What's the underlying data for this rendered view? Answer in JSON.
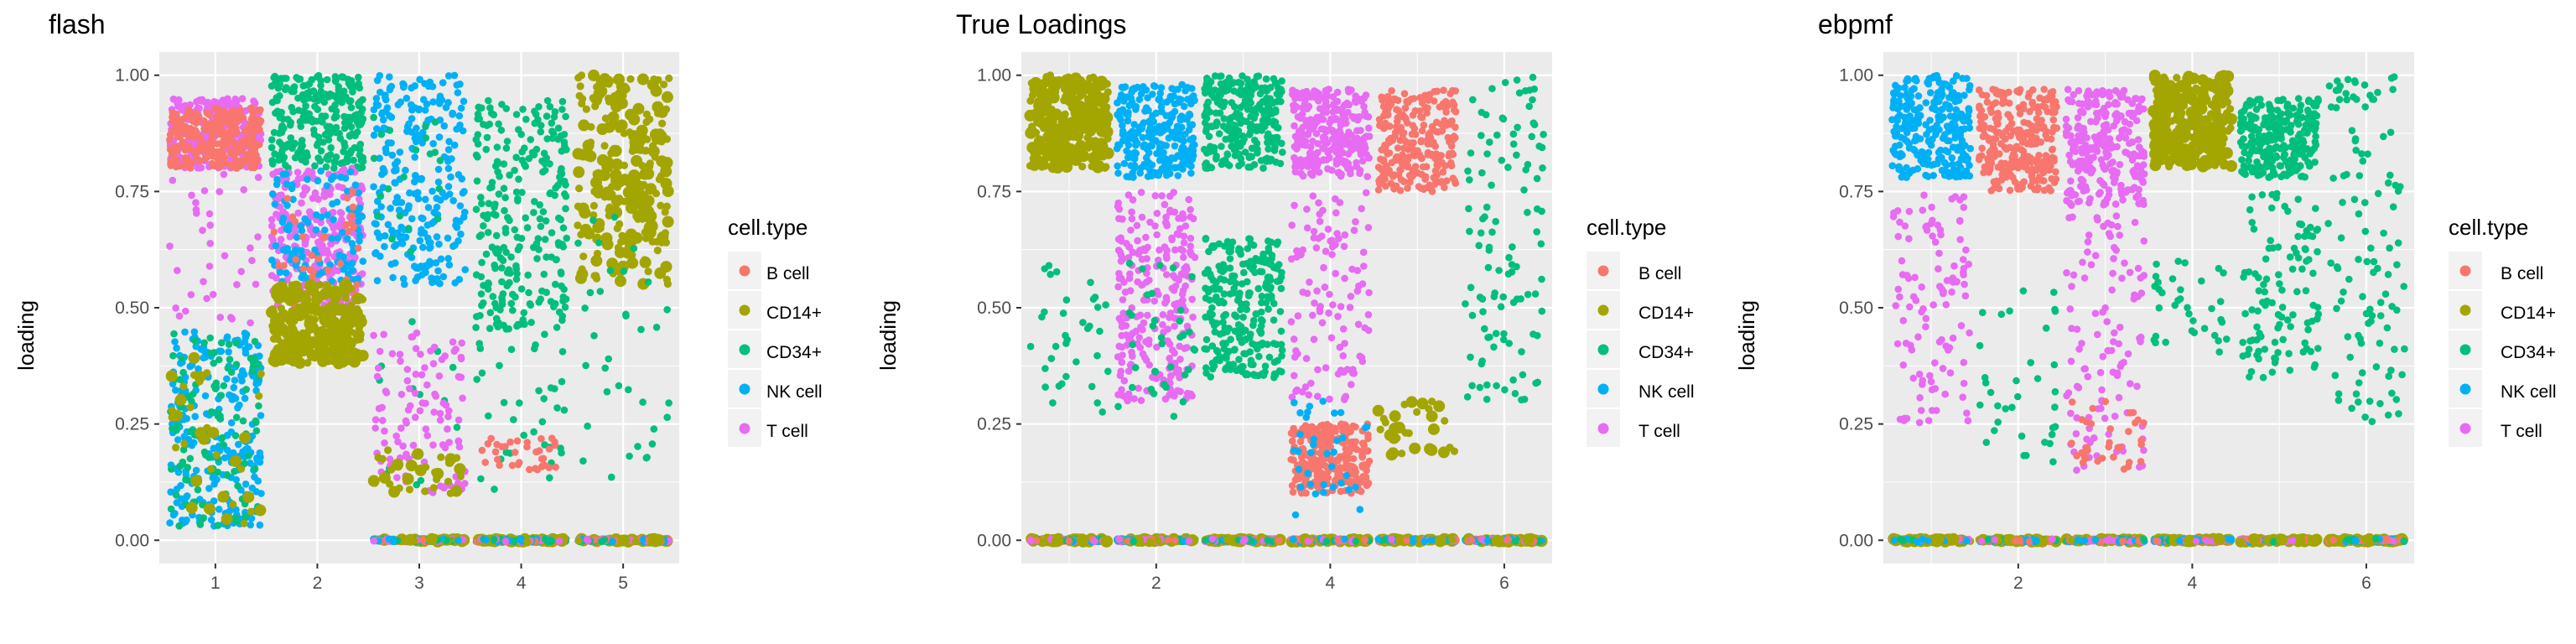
{
  "colors": {
    "B cell": "#F8766D",
    "CD14+": "#A3A500",
    "CD34+": "#00BF7D",
    "NK cell": "#00B0F6",
    "T cell": "#E76BF3",
    "panel_bg": "#EBEBEB",
    "grid": "#FFFFFF"
  },
  "legend": {
    "title": "cell.type",
    "items": [
      "B cell",
      "CD14+",
      "CD34+",
      "NK cell",
      "T cell"
    ]
  },
  "chart_data": [
    {
      "type": "scatter",
      "title": "flash",
      "xlabel": "",
      "ylabel": "loading",
      "x_ticks": [
        "1",
        "2",
        "3",
        "4",
        "5"
      ],
      "y_ticks": [
        "0.00",
        "0.25",
        "0.50",
        "0.75",
        "1.00"
      ],
      "xlim": [
        0.45,
        5.55
      ],
      "ylim": [
        -0.05,
        1.05
      ],
      "grid": true,
      "legend_position": "right",
      "jittered_factors": [
        {
          "factor": 1,
          "clusters": [
            {
              "type": "T cell",
              "ymin": 0.8,
              "ymax": 0.95,
              "density": "dense"
            },
            {
              "type": "B cell",
              "ymin": 0.8,
              "ymax": 0.93,
              "density": "dense"
            },
            {
              "type": "T cell",
              "ymin": 0.45,
              "ymax": 0.8,
              "density": "sparse"
            },
            {
              "type": "NK cell",
              "ymin": 0.03,
              "ymax": 0.45,
              "density": "dense"
            },
            {
              "type": "CD34+",
              "ymin": 0.03,
              "ymax": 0.45,
              "density": "medium"
            },
            {
              "type": "CD14+",
              "ymin": 0.03,
              "ymax": 0.4,
              "density": "sparse"
            }
          ]
        },
        {
          "factor": 2,
          "clusters": [
            {
              "type": "CD34+",
              "ymin": 0.8,
              "ymax": 1.0,
              "density": "dense"
            },
            {
              "type": "T cell",
              "ymin": 0.5,
              "ymax": 0.8,
              "density": "dense"
            },
            {
              "type": "NK cell",
              "ymin": 0.55,
              "ymax": 0.8,
              "density": "medium"
            },
            {
              "type": "B cell",
              "ymin": 0.5,
              "ymax": 0.75,
              "density": "sparse"
            },
            {
              "type": "CD14+",
              "ymin": 0.38,
              "ymax": 0.55,
              "density": "dense"
            }
          ]
        },
        {
          "factor": 3,
          "clusters": [
            {
              "type": "NK cell",
              "ymin": 0.55,
              "ymax": 1.0,
              "density": "dense"
            },
            {
              "type": "CD34+",
              "ymin": 0.1,
              "ymax": 0.95,
              "density": "sparse"
            },
            {
              "type": "T cell",
              "ymin": 0.1,
              "ymax": 0.45,
              "density": "medium"
            },
            {
              "type": "CD14+",
              "ymin": 0.1,
              "ymax": 0.2,
              "density": "sparse"
            },
            {
              "type": "mixed",
              "ymin": 0.0,
              "ymax": 0.0,
              "density": "dense"
            }
          ]
        },
        {
          "factor": 4,
          "clusters": [
            {
              "type": "CD34+",
              "ymin": 0.45,
              "ymax": 0.95,
              "density": "dense"
            },
            {
              "type": "CD34+",
              "ymin": 0.1,
              "ymax": 0.45,
              "density": "sparse"
            },
            {
              "type": "B cell",
              "ymin": 0.15,
              "ymax": 0.22,
              "density": "sparse"
            },
            {
              "type": "mixed",
              "ymin": 0.0,
              "ymax": 0.0,
              "density": "dense"
            }
          ]
        },
        {
          "factor": 5,
          "clusters": [
            {
              "type": "CD14+",
              "ymin": 0.55,
              "ymax": 1.0,
              "density": "dense"
            },
            {
              "type": "CD34+",
              "ymin": 0.1,
              "ymax": 0.7,
              "density": "sparse"
            },
            {
              "type": "mixed",
              "ymin": 0.0,
              "ymax": 0.0,
              "density": "dense"
            }
          ]
        }
      ]
    },
    {
      "type": "scatter",
      "title": "True Loadings",
      "xlabel": "",
      "ylabel": "loading",
      "x_ticks": [
        "2",
        "4",
        "6"
      ],
      "y_ticks": [
        "0.00",
        "0.25",
        "0.50",
        "0.75",
        "1.00"
      ],
      "xlim": [
        0.45,
        6.55
      ],
      "ylim": [
        -0.05,
        1.05
      ],
      "grid": true,
      "legend_position": "right",
      "jittered_factors": [
        {
          "factor": 1,
          "clusters": [
            {
              "type": "CD14+",
              "ymin": 0.8,
              "ymax": 1.0,
              "density": "dense"
            },
            {
              "type": "CD34+",
              "ymin": 0.25,
              "ymax": 0.6,
              "density": "sparse"
            },
            {
              "type": "mixed",
              "ymin": 0.0,
              "ymax": 0.0,
              "density": "dense"
            }
          ]
        },
        {
          "factor": 2,
          "clusters": [
            {
              "type": "NK cell",
              "ymin": 0.78,
              "ymax": 0.98,
              "density": "dense"
            },
            {
              "type": "T cell",
              "ymin": 0.3,
              "ymax": 0.75,
              "density": "dense"
            },
            {
              "type": "CD34+",
              "ymin": 0.25,
              "ymax": 0.6,
              "density": "sparse"
            },
            {
              "type": "mixed",
              "ymin": 0.0,
              "ymax": 0.0,
              "density": "dense"
            }
          ]
        },
        {
          "factor": 3,
          "clusters": [
            {
              "type": "CD34+",
              "ymin": 0.8,
              "ymax": 1.0,
              "density": "dense"
            },
            {
              "type": "CD34+",
              "ymin": 0.35,
              "ymax": 0.65,
              "density": "dense"
            },
            {
              "type": "mixed",
              "ymin": 0.0,
              "ymax": 0.0,
              "density": "dense"
            }
          ]
        },
        {
          "factor": 4,
          "clusters": [
            {
              "type": "T cell",
              "ymin": 0.78,
              "ymax": 0.97,
              "density": "dense"
            },
            {
              "type": "T cell",
              "ymin": 0.3,
              "ymax": 0.75,
              "density": "medium"
            },
            {
              "type": "B cell",
              "ymin": 0.1,
              "ymax": 0.25,
              "density": "dense"
            },
            {
              "type": "NK cell",
              "ymin": 0.05,
              "ymax": 0.3,
              "density": "sparse"
            },
            {
              "type": "mixed",
              "ymin": 0.0,
              "ymax": 0.0,
              "density": "dense"
            }
          ]
        },
        {
          "factor": 5,
          "clusters": [
            {
              "type": "B cell",
              "ymin": 0.75,
              "ymax": 0.97,
              "density": "dense"
            },
            {
              "type": "CD14+",
              "ymin": 0.18,
              "ymax": 0.3,
              "density": "sparse"
            },
            {
              "type": "mixed",
              "ymin": 0.0,
              "ymax": 0.0,
              "density": "dense"
            }
          ]
        },
        {
          "factor": 6,
          "clusters": [
            {
              "type": "CD34+",
              "ymin": 0.3,
              "ymax": 1.0,
              "density": "medium"
            },
            {
              "type": "mixed",
              "ymin": 0.0,
              "ymax": 0.0,
              "density": "dense"
            }
          ]
        }
      ]
    },
    {
      "type": "scatter",
      "title": "ebpmf",
      "xlabel": "",
      "ylabel": "loading",
      "x_ticks": [
        "2",
        "4",
        "6"
      ],
      "y_ticks": [
        "0.00",
        "0.25",
        "0.50",
        "0.75",
        "1.00"
      ],
      "xlim": [
        0.45,
        6.55
      ],
      "ylim": [
        -0.05,
        1.05
      ],
      "grid": true,
      "legend_position": "right",
      "jittered_factors": [
        {
          "factor": 1,
          "clusters": [
            {
              "type": "NK cell",
              "ymin": 0.78,
              "ymax": 1.0,
              "density": "dense"
            },
            {
              "type": "T cell",
              "ymin": 0.25,
              "ymax": 0.75,
              "density": "medium"
            },
            {
              "type": "mixed",
              "ymin": 0.0,
              "ymax": 0.0,
              "density": "dense"
            }
          ]
        },
        {
          "factor": 2,
          "clusters": [
            {
              "type": "B cell",
              "ymin": 0.75,
              "ymax": 0.97,
              "density": "dense"
            },
            {
              "type": "CD34+",
              "ymin": 0.15,
              "ymax": 0.55,
              "density": "sparse"
            },
            {
              "type": "mixed",
              "ymin": 0.0,
              "ymax": 0.0,
              "density": "dense"
            }
          ]
        },
        {
          "factor": 3,
          "clusters": [
            {
              "type": "T cell",
              "ymin": 0.72,
              "ymax": 0.97,
              "density": "dense"
            },
            {
              "type": "T cell",
              "ymin": 0.15,
              "ymax": 0.7,
              "density": "medium"
            },
            {
              "type": "B cell",
              "ymin": 0.15,
              "ymax": 0.3,
              "density": "sparse"
            },
            {
              "type": "mixed",
              "ymin": 0.0,
              "ymax": 0.0,
              "density": "dense"
            }
          ]
        },
        {
          "factor": 4,
          "clusters": [
            {
              "type": "CD14+",
              "ymin": 0.8,
              "ymax": 1.0,
              "density": "dense"
            },
            {
              "type": "CD34+",
              "ymin": 0.4,
              "ymax": 0.6,
              "density": "sparse"
            },
            {
              "type": "mixed",
              "ymin": 0.0,
              "ymax": 0.0,
              "density": "dense"
            }
          ]
        },
        {
          "factor": 5,
          "clusters": [
            {
              "type": "CD34+",
              "ymin": 0.78,
              "ymax": 0.95,
              "density": "dense"
            },
            {
              "type": "CD34+",
              "ymin": 0.35,
              "ymax": 0.75,
              "density": "medium"
            },
            {
              "type": "mixed",
              "ymin": 0.0,
              "ymax": 0.0,
              "density": "dense"
            }
          ]
        },
        {
          "factor": 6,
          "clusters": [
            {
              "type": "CD34+",
              "ymin": 0.25,
              "ymax": 1.0,
              "density": "medium"
            },
            {
              "type": "mixed",
              "ymin": 0.0,
              "ymax": 0.0,
              "density": "dense"
            }
          ]
        }
      ]
    }
  ]
}
